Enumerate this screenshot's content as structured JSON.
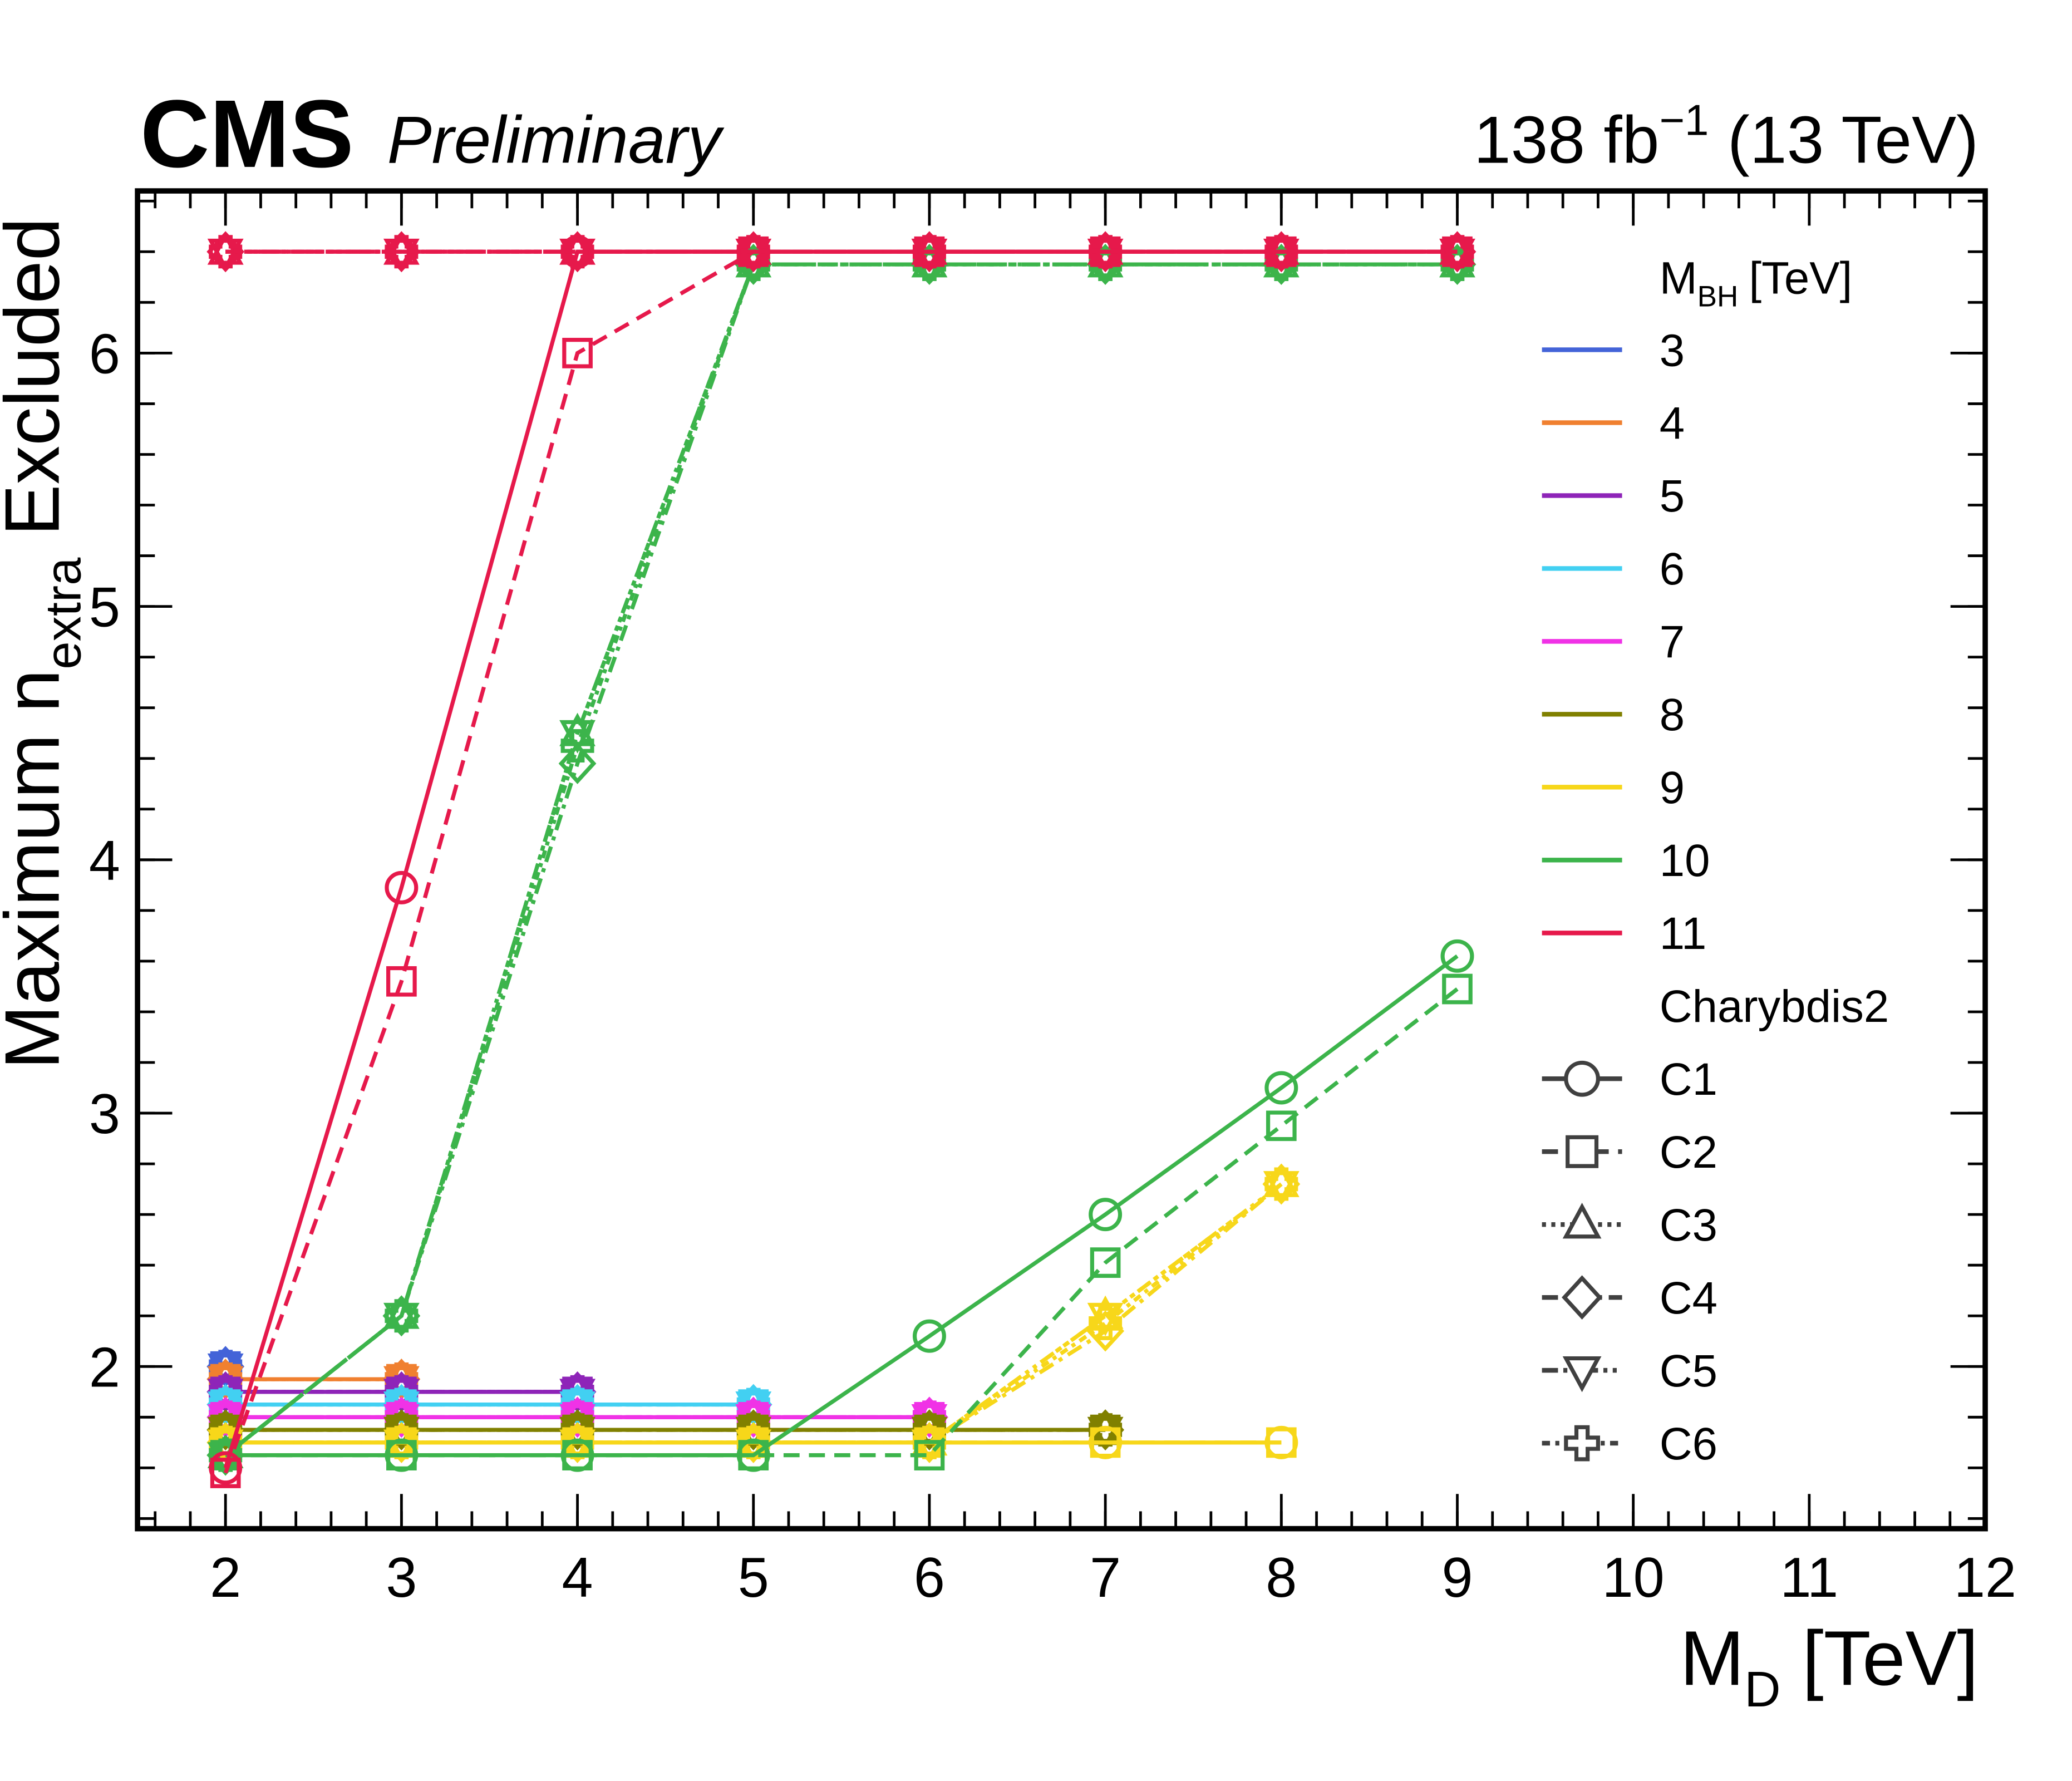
{
  "chart_data": {
    "type": "line",
    "experiment": "CMS",
    "status": "Preliminary",
    "lumi": {
      "main": "138 fb",
      "sup": "−1",
      "rest": "(13 TeV)"
    },
    "xlabel": {
      "main": "M",
      "sub": "D",
      "unit": "[TeV]"
    },
    "ylabel": {
      "main": "Maximum n",
      "sub": "extra",
      "rest": "Excluded"
    },
    "xlim": [
      1.5,
      12
    ],
    "ylim": [
      1.36,
      6.64
    ],
    "xticks": [
      2,
      3,
      4,
      5,
      6,
      7,
      8,
      9,
      10,
      11,
      12
    ],
    "yticks": [
      2,
      3,
      4,
      5,
      6
    ],
    "minor_divisions": 5,
    "legend_title": {
      "main": "M",
      "sub": "BH",
      "unit": "[TeV]"
    },
    "model_title": "Charybdis2",
    "model_color": "#404040",
    "styles": [
      {
        "name": "C1",
        "marker": "circle",
        "dash": "solid"
      },
      {
        "name": "C2",
        "marker": "square",
        "dash": "dashed"
      },
      {
        "name": "C3",
        "marker": "triangle-up",
        "dash": "dotted"
      },
      {
        "name": "C4",
        "marker": "diamond",
        "dash": "dashdot"
      },
      {
        "name": "C5",
        "marker": "triangle-down",
        "dash": "dashdotdot"
      },
      {
        "name": "C6",
        "marker": "plus",
        "dash": "densedashdot"
      }
    ],
    "series": [
      {
        "name": "3",
        "color": "#4363d8",
        "x": [
          2
        ],
        "models": [
          {
            "values": [
              2.0
            ]
          },
          {
            "values": [
              2.0
            ]
          },
          {
            "values": [
              2.0
            ]
          },
          {
            "values": [
              2.0
            ]
          },
          {
            "values": [
              2.0
            ]
          },
          {
            "values": [
              2.0
            ]
          }
        ]
      },
      {
        "name": "4",
        "color": "#f08030",
        "x": [
          2,
          3
        ],
        "models": [
          {
            "values": [
              1.95,
              1.95
            ]
          },
          {
            "values": [
              1.95,
              1.95
            ]
          },
          {
            "values": [
              1.95,
              1.95
            ]
          },
          {
            "values": [
              1.95,
              1.95
            ]
          },
          {
            "values": [
              1.95,
              1.95
            ]
          },
          {
            "values": [
              1.95,
              1.95
            ]
          }
        ]
      },
      {
        "name": "5",
        "color": "#8e24b8",
        "x": [
          2,
          3,
          4
        ],
        "models": [
          {
            "values": [
              1.9,
              1.9,
              1.9
            ]
          },
          {
            "values": [
              1.9,
              1.9,
              1.9
            ]
          },
          {
            "values": [
              1.9,
              1.9,
              1.9
            ]
          },
          {
            "values": [
              1.9,
              1.9,
              1.9
            ]
          },
          {
            "values": [
              1.9,
              1.9,
              1.9
            ]
          },
          {
            "values": [
              1.9,
              1.9,
              1.9
            ]
          }
        ]
      },
      {
        "name": "6",
        "color": "#42d0f2",
        "x": [
          2,
          3,
          4,
          5
        ],
        "models": [
          {
            "values": [
              1.85,
              1.85,
              1.85,
              1.85
            ]
          },
          {
            "values": [
              1.85,
              1.85,
              1.85,
              1.85
            ]
          },
          {
            "values": [
              1.85,
              1.85,
              1.85,
              1.85
            ]
          },
          {
            "values": [
              1.85,
              1.85,
              1.85,
              1.85
            ]
          },
          {
            "values": [
              1.85,
              1.85,
              1.85,
              1.85
            ]
          },
          {
            "values": [
              1.85,
              1.85,
              1.85,
              1.85
            ]
          }
        ]
      },
      {
        "name": "7",
        "color": "#f032e6",
        "x": [
          2,
          3,
          4,
          5,
          6
        ],
        "models": [
          {
            "values": [
              1.8,
              1.8,
              1.8,
              1.8,
              1.8
            ]
          },
          {
            "values": [
              1.8,
              1.8,
              1.8,
              1.8,
              1.8
            ]
          },
          {
            "values": [
              1.8,
              1.8,
              1.8,
              1.8,
              1.8
            ]
          },
          {
            "values": [
              1.8,
              1.8,
              1.8,
              1.8,
              1.8
            ]
          },
          {
            "values": [
              1.8,
              1.8,
              1.8,
              1.8,
              1.8
            ]
          },
          {
            "values": [
              1.8,
              1.8,
              1.8,
              1.8,
              1.8
            ]
          }
        ]
      },
      {
        "name": "8",
        "color": "#808000",
        "x": [
          2,
          3,
          4,
          5,
          6,
          7
        ],
        "models": [
          {
            "values": [
              1.75,
              1.75,
              1.75,
              1.75,
              1.75,
              1.75
            ]
          },
          {
            "values": [
              1.75,
              1.75,
              1.75,
              1.75,
              1.75,
              1.75
            ]
          },
          {
            "values": [
              1.75,
              1.75,
              1.75,
              1.75,
              1.75,
              1.75
            ]
          },
          {
            "values": [
              1.75,
              1.75,
              1.75,
              1.75,
              1.75,
              1.75
            ]
          },
          {
            "values": [
              1.75,
              1.75,
              1.75,
              1.75,
              1.75,
              1.75
            ]
          },
          {
            "values": [
              1.75,
              1.75,
              1.75,
              1.75,
              1.75,
              1.75
            ]
          }
        ]
      },
      {
        "name": "9",
        "color": "#f7d71a",
        "x": [
          2,
          3,
          4,
          5,
          6,
          7,
          8
        ],
        "models": [
          {
            "values": [
              1.7,
              1.7,
              1.7,
              1.7,
              1.7,
              1.7,
              1.7
            ]
          },
          {
            "values": [
              1.7,
              1.7,
              1.7,
              1.7,
              1.7,
              1.7,
              1.7
            ]
          },
          {
            "values": [
              1.7,
              1.7,
              1.7,
              1.7,
              1.7,
              2.2,
              2.72
            ]
          },
          {
            "values": [
              1.7,
              1.7,
              1.7,
              1.7,
              1.7,
              2.14,
              2.72
            ]
          },
          {
            "values": [
              1.7,
              1.7,
              1.7,
              1.7,
              1.7,
              2.2,
              2.72
            ]
          },
          {
            "values": [
              1.7,
              1.7,
              1.7,
              1.7,
              1.7,
              2.17,
              2.72
            ]
          }
        ]
      },
      {
        "name": "10",
        "color": "#3cb44b",
        "x": [
          2,
          3,
          4,
          5,
          6,
          7,
          8,
          9
        ],
        "models": [
          {
            "values": [
              1.65,
              1.65,
              1.65,
              1.65,
              2.12,
              2.6,
              3.1,
              3.62
            ]
          },
          {
            "values": [
              1.65,
              1.65,
              1.65,
              1.65,
              1.65,
              2.41,
              2.95,
              3.49
            ]
          },
          {
            "values": [
              1.65,
              2.2,
              4.5,
              6.35,
              6.35,
              6.35,
              6.35,
              6.35
            ]
          },
          {
            "values": [
              1.65,
              2.2,
              4.38,
              6.35,
              6.35,
              6.35,
              6.35,
              6.35
            ]
          },
          {
            "values": [
              1.65,
              2.2,
              4.5,
              6.35,
              6.35,
              6.35,
              6.35,
              6.35
            ]
          },
          {
            "values": [
              1.65,
              2.2,
              4.45,
              6.35,
              6.35,
              6.35,
              6.35,
              6.35
            ]
          }
        ]
      },
      {
        "name": "11",
        "color": "#e6194b",
        "x": [
          2,
          3,
          4,
          5,
          6,
          7,
          8,
          9
        ],
        "models": [
          {
            "values": [
              1.6,
              3.89,
              6.4,
              6.4,
              6.4,
              6.4,
              6.4,
              6.4
            ]
          },
          {
            "values": [
              1.58,
              3.52,
              6.0,
              6.4,
              6.4,
              6.4,
              6.4,
              6.4
            ]
          },
          {
            "values": [
              6.4,
              6.4,
              6.4,
              6.4,
              6.4,
              6.4,
              6.4,
              6.4
            ]
          },
          {
            "values": [
              6.4,
              6.4,
              6.4,
              6.4,
              6.4,
              6.4,
              6.4,
              6.4
            ]
          },
          {
            "values": [
              6.4,
              6.4,
              6.4,
              6.4,
              6.4,
              6.4,
              6.4,
              6.4
            ]
          },
          {
            "values": [
              6.4,
              6.4,
              6.4,
              6.4,
              6.4,
              6.4,
              6.4,
              6.4
            ]
          }
        ]
      }
    ]
  }
}
